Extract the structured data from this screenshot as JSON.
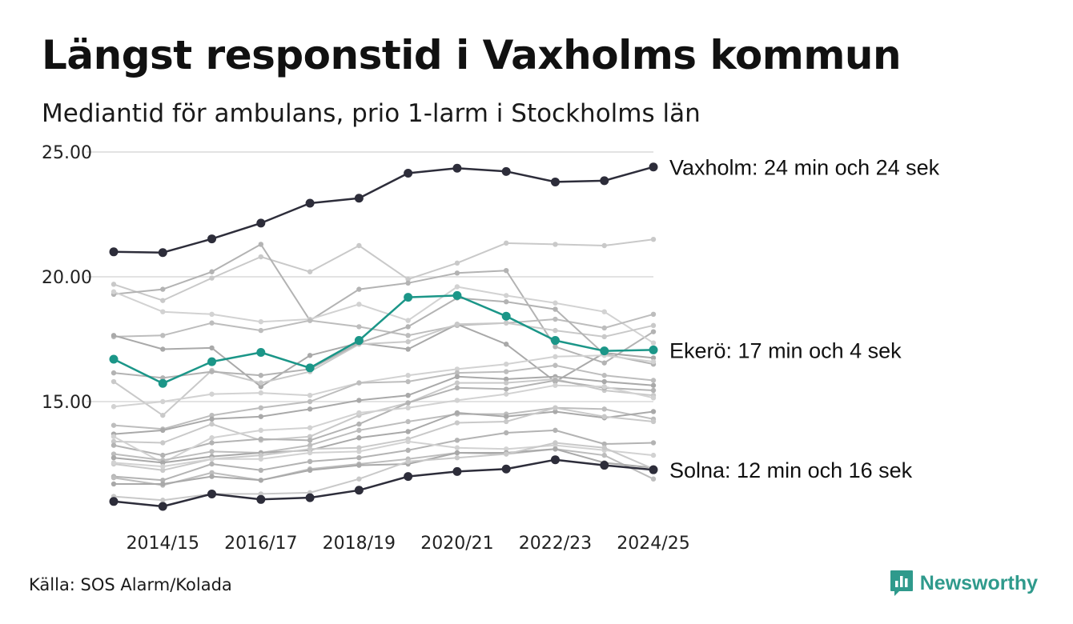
{
  "title": "Längst responstid i Vaxholms kommun",
  "subtitle": "Mediantid för ambulans, prio 1-larm i Stockholms län",
  "source": "Källa: SOS Alarm/Kolada",
  "brand": {
    "name": "Newsworthy",
    "icon": "newsworthy-logo-icon",
    "color": "#2f9a8c"
  },
  "chart_data": {
    "type": "line",
    "x": [
      "2013/14",
      "2014/15",
      "2015/16",
      "2016/17",
      "2017/18",
      "2018/19",
      "2019/20",
      "2020/21",
      "2021/22",
      "2022/23",
      "2023/24",
      "2024/25"
    ],
    "x_tick_labels": [
      "2014/15",
      "2016/17",
      "2018/19",
      "2020/21",
      "2022/23",
      "2024/25"
    ],
    "ylim": [
      10.0,
      25.0
    ],
    "y_ticks": [
      15,
      20,
      25
    ],
    "y_tick_labels": [
      "15.00",
      "20.00",
      "25.00"
    ],
    "grid": true,
    "colors": {
      "background_series": "#c4c4c4",
      "highlight_dark": "#2d2d3a",
      "highlight_teal": "#1b9688"
    },
    "highlighted_series": [
      {
        "name": "Vaxholm",
        "label": "Vaxholm: 24 min och 24 sek",
        "color": "#2d2d3a",
        "values": [
          21.0,
          20.97,
          21.52,
          22.15,
          22.95,
          23.15,
          24.15,
          24.35,
          24.22,
          23.8,
          23.85,
          24.4
        ]
      },
      {
        "name": "Ekerö",
        "label": "Ekerö: 17 min och 4 sek",
        "color": "#1b9688",
        "values": [
          16.7,
          15.73,
          16.6,
          16.97,
          16.35,
          17.45,
          19.18,
          19.25,
          18.42,
          17.45,
          17.03,
          17.07
        ]
      },
      {
        "name": "Solna",
        "label": "Solna: 12 min och 16 sek",
        "color": "#2d2d3a",
        "values": [
          11.0,
          10.8,
          11.3,
          11.08,
          11.15,
          11.45,
          12.0,
          12.2,
          12.3,
          12.67,
          12.45,
          12.27
        ]
      }
    ],
    "background_series": [
      {
        "values": [
          19.7,
          19.05,
          19.95,
          20.8,
          20.2,
          21.25,
          19.9,
          20.55,
          21.35,
          21.3,
          21.25,
          21.5
        ]
      },
      {
        "values": [
          19.3,
          19.5,
          20.2,
          21.3,
          18.25,
          19.5,
          19.75,
          20.15,
          20.25,
          17.2,
          16.55,
          17.8
        ]
      },
      {
        "values": [
          19.4,
          18.6,
          18.5,
          18.2,
          18.3,
          18.9,
          18.25,
          19.6,
          19.25,
          18.95,
          18.6,
          17.35
        ]
      },
      {
        "values": [
          17.6,
          17.65,
          18.15,
          17.85,
          18.25,
          18.0,
          17.65,
          18.05,
          18.15,
          18.3,
          17.95,
          18.5
        ]
      },
      {
        "values": [
          17.65,
          17.1,
          17.15,
          15.6,
          16.85,
          17.35,
          17.1,
          18.1,
          17.3,
          15.8,
          16.95,
          16.75
        ]
      },
      {
        "values": [
          15.8,
          14.45,
          16.25,
          15.75,
          16.2,
          17.3,
          17.4,
          18.1,
          18.15,
          17.85,
          17.6,
          18.05
        ]
      },
      {
        "values": [
          16.15,
          15.95,
          16.2,
          16.05,
          16.3,
          17.35,
          18.0,
          19.15,
          19.0,
          18.7,
          16.9,
          16.5
        ]
      },
      {
        "values": [
          14.8,
          15.0,
          15.3,
          15.35,
          15.25,
          15.75,
          16.05,
          16.3,
          16.5,
          16.8,
          16.85,
          16.6
        ]
      },
      {
        "values": [
          14.05,
          13.9,
          14.45,
          14.75,
          15.0,
          15.75,
          15.8,
          16.15,
          16.2,
          16.45,
          16.05,
          15.85
        ]
      },
      {
        "values": [
          13.7,
          13.85,
          14.3,
          14.4,
          14.7,
          15.05,
          15.25,
          16.0,
          15.9,
          16.0,
          15.8,
          15.65
        ]
      },
      {
        "values": [
          13.4,
          13.35,
          14.1,
          13.45,
          13.6,
          14.45,
          14.95,
          15.75,
          15.75,
          15.9,
          15.45,
          15.25
        ]
      },
      {
        "values": [
          13.25,
          12.85,
          13.35,
          13.5,
          13.45,
          14.1,
          14.95,
          15.55,
          15.5,
          15.85,
          15.55,
          15.45
        ]
      },
      {
        "values": [
          13.6,
          12.55,
          13.55,
          13.85,
          13.95,
          14.55,
          14.75,
          15.05,
          15.3,
          15.65,
          15.6,
          15.15
        ]
      },
      {
        "values": [
          12.9,
          12.65,
          13.0,
          12.95,
          13.25,
          13.85,
          14.2,
          14.5,
          14.5,
          14.75,
          14.7,
          14.3
        ]
      },
      {
        "values": [
          12.75,
          12.55,
          12.8,
          12.95,
          13.05,
          13.55,
          13.8,
          14.55,
          14.4,
          14.6,
          14.35,
          14.6
        ]
      },
      {
        "values": [
          12.5,
          12.25,
          12.7,
          12.85,
          13.1,
          13.15,
          13.5,
          14.15,
          14.2,
          14.75,
          14.4,
          14.2
        ]
      },
      {
        "values": [
          12.0,
          11.85,
          12.5,
          12.25,
          12.6,
          12.75,
          13.05,
          13.45,
          13.75,
          13.85,
          13.3,
          13.35
        ]
      },
      {
        "values": [
          12.55,
          12.4,
          12.7,
          12.7,
          12.95,
          13.0,
          13.4,
          13.15,
          13.1,
          13.25,
          13.05,
          12.85
        ]
      },
      {
        "values": [
          11.95,
          11.65,
          12.15,
          11.85,
          12.3,
          12.5,
          12.7,
          12.95,
          12.9,
          13.1,
          12.85,
          11.9
        ]
      },
      {
        "values": [
          11.7,
          11.7,
          12.0,
          11.85,
          12.25,
          12.45,
          12.5,
          12.95,
          12.95,
          13.1,
          12.55,
          12.35
        ]
      },
      {
        "values": [
          11.2,
          11.05,
          11.3,
          11.3,
          11.35,
          11.9,
          12.6,
          12.75,
          12.9,
          13.35,
          13.15,
          12.3
        ]
      }
    ]
  }
}
